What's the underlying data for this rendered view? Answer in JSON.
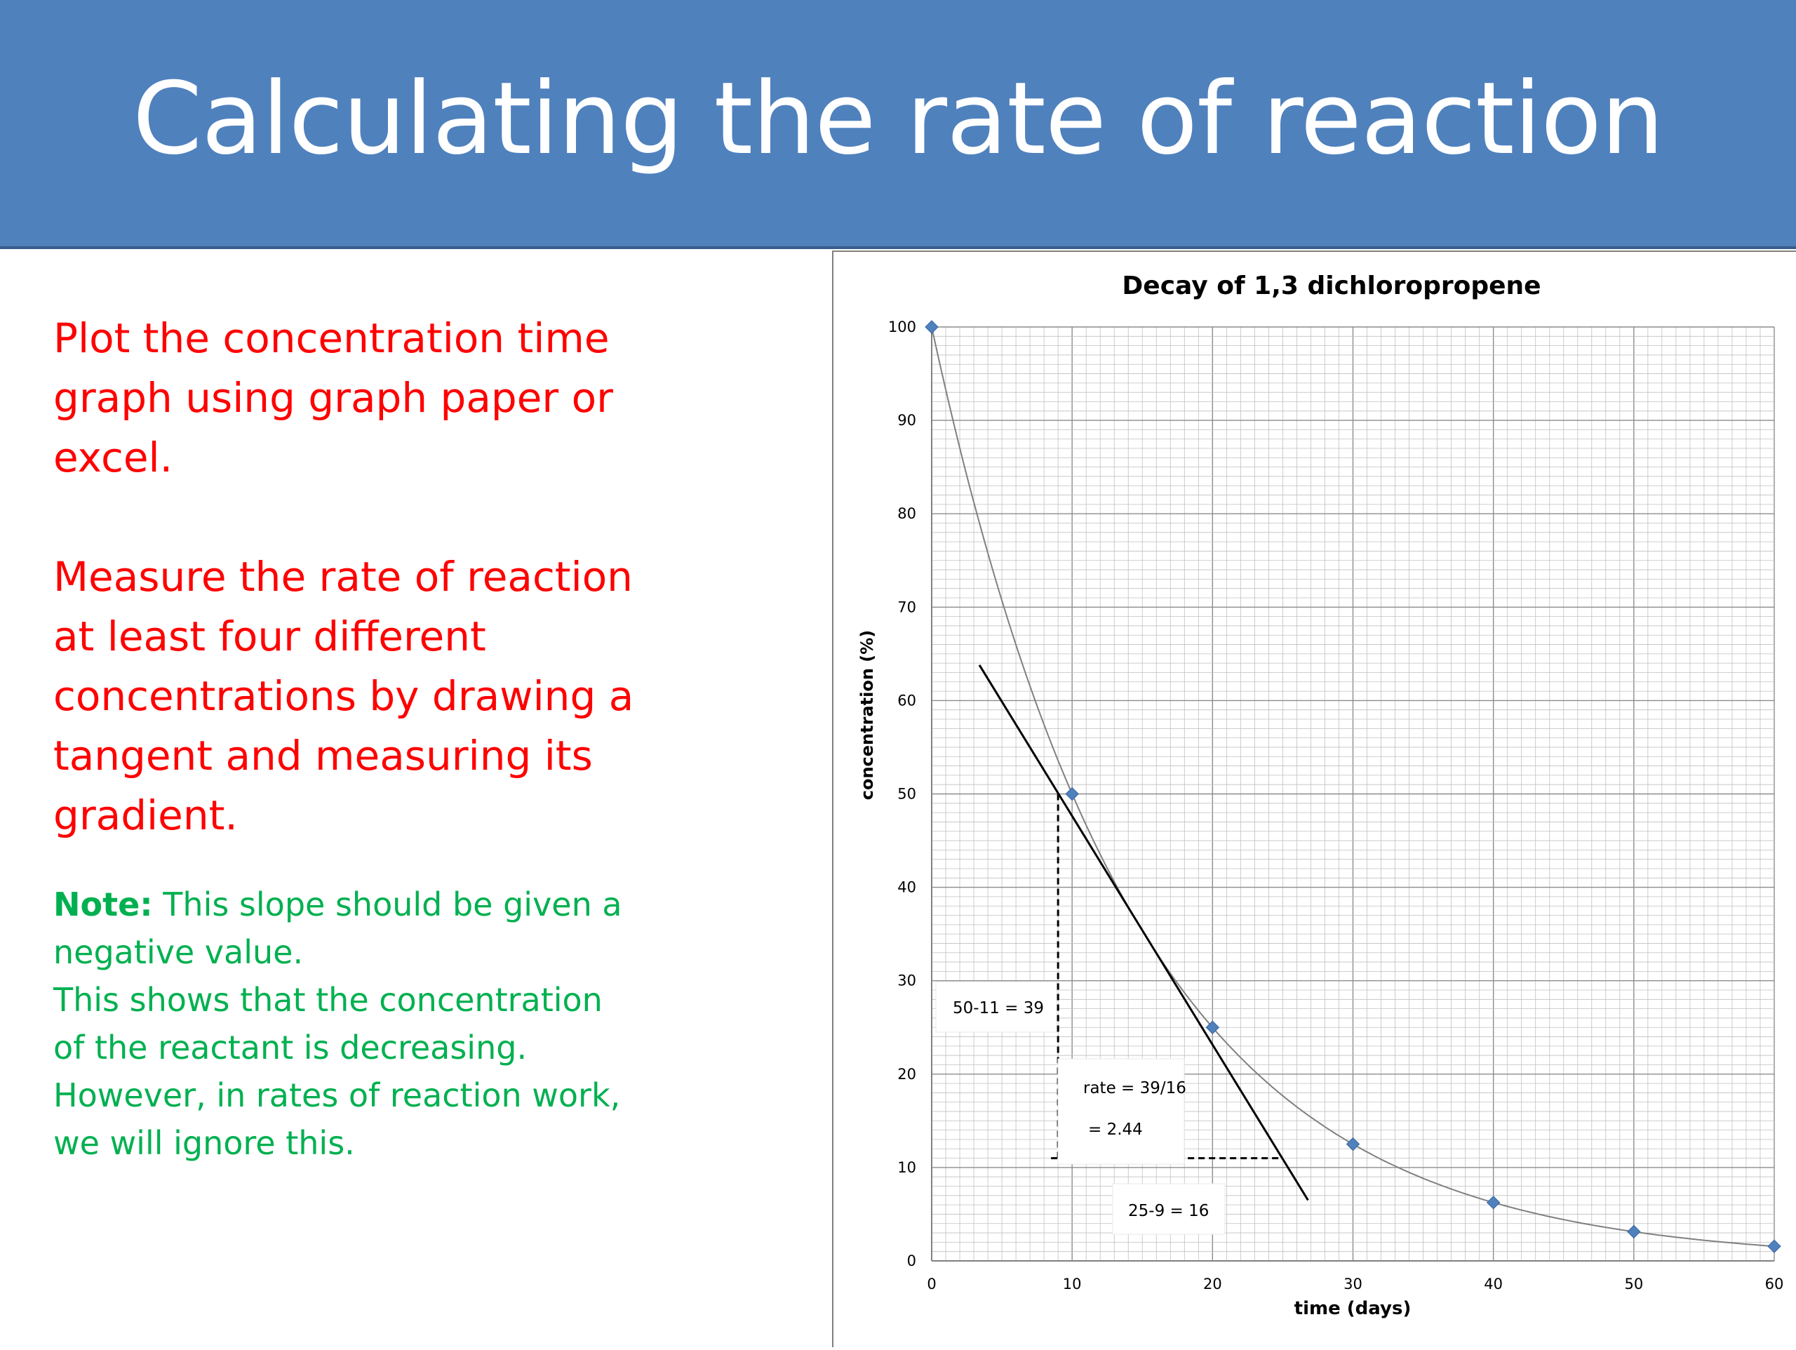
{
  "slide": {
    "title": "Calculating the rate of reaction",
    "instruction_1": [
      "Plot the concentration time",
      "graph using graph paper or",
      "excel."
    ],
    "instruction_2": [
      "Measure the rate of reaction",
      "at least four different",
      "concentrations by drawing a",
      "tangent and measuring its",
      "gradient."
    ],
    "note_label": "Note:",
    "note_lines": [
      " This slope should be given a",
      "negative value.",
      "This shows that the concentration",
      "of the reactant is decreasing.",
      "However, in rates of reaction work,",
      "we will ignore this."
    ]
  },
  "chart_data": {
    "type": "scatter",
    "title": "Decay of 1,3 dichloropropene",
    "xlabel": "time (days)",
    "ylabel": "concentration  (%)",
    "xlim": [
      0,
      60
    ],
    "ylim": [
      0,
      100
    ],
    "xticks": [
      0,
      10,
      20,
      30,
      40,
      50,
      60
    ],
    "yticks": [
      0,
      10,
      20,
      30,
      40,
      50,
      60,
      70,
      80,
      90,
      100
    ],
    "grid": true,
    "series": [
      {
        "x": [
          0,
          10,
          20,
          30,
          40,
          50,
          60
        ],
        "y": [
          100,
          50,
          25,
          12.5,
          6.25,
          3.125,
          1.5625
        ]
      }
    ],
    "tangent": {
      "from": [
        3.4,
        63.8
      ],
      "to": [
        26.8,
        6.5
      ]
    },
    "triangle": {
      "top": [
        9,
        50
      ],
      "corner": [
        9,
        11
      ],
      "right": [
        25,
        11
      ]
    },
    "annotations": {
      "rise": "50-11 = 39",
      "rate_line1": "rate = 39/16",
      "rate_line2": "= 2.44",
      "run": "25-9 = 16"
    },
    "colors": {
      "marker": "#4f81bd",
      "grid": "#c0c0c0",
      "curve": "#808080"
    }
  }
}
